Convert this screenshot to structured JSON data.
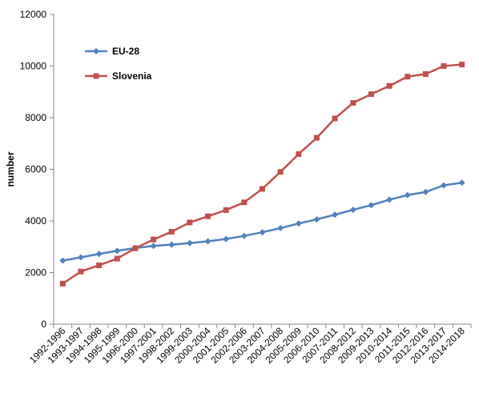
{
  "chart_data": {
    "type": "line",
    "title": "",
    "xlabel": "",
    "ylabel": "number",
    "ylim": [
      0,
      12000
    ],
    "yticks": [
      0,
      2000,
      4000,
      6000,
      8000,
      10000,
      12000
    ],
    "grid": false,
    "legend_position": "top-left",
    "categories": [
      "1992-1996",
      "1993-1997",
      "1994-1998",
      "1995-1999",
      "1996-2000",
      "1997-2001",
      "1998-2002",
      "1999-2003",
      "2000-2004",
      "2001-2005",
      "2002-2006",
      "2003-2007",
      "2004-2008",
      "2005-2009",
      "2006-2010",
      "2007-2011",
      "2008-2012",
      "2009-2013",
      "2010-2014",
      "2011-2015",
      "2012-2016",
      "2013-2017",
      "2014-2018"
    ],
    "series": [
      {
        "name": "EU-28",
        "color": "#4F81BD",
        "marker": "diamond",
        "values": [
          2460,
          2590,
          2720,
          2840,
          2950,
          3030,
          3080,
          3140,
          3210,
          3300,
          3420,
          3560,
          3720,
          3900,
          4060,
          4240,
          4430,
          4610,
          4820,
          5000,
          5120,
          5380,
          5480
        ]
      },
      {
        "name": "Slovenia",
        "color": "#C0504D",
        "marker": "square",
        "values": [
          1570,
          2040,
          2280,
          2540,
          2940,
          3280,
          3580,
          3940,
          4180,
          4420,
          4720,
          5240,
          5900,
          6590,
          7220,
          7970,
          8570,
          8910,
          9230,
          9590,
          9690,
          10000,
          10060
        ]
      }
    ]
  }
}
